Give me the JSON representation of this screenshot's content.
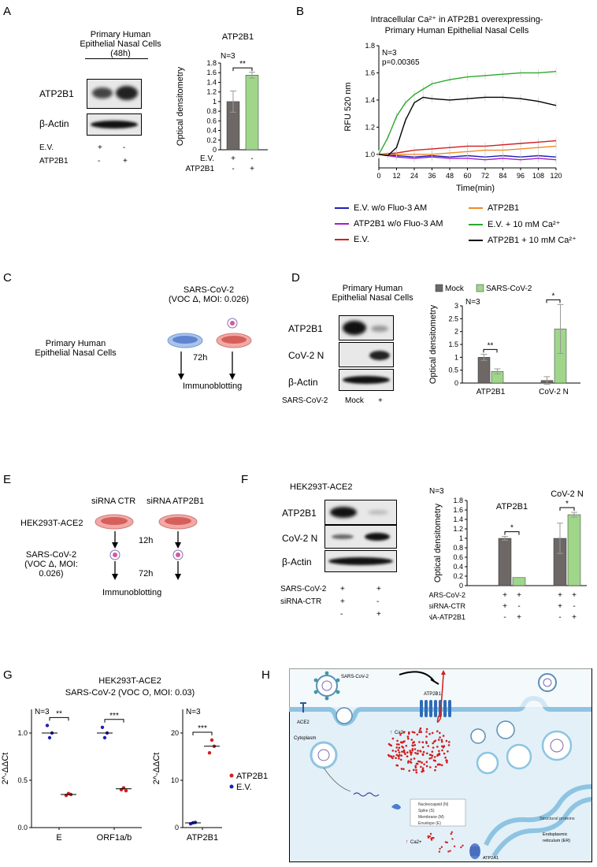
{
  "colors": {
    "gray": "#6d6865",
    "green": "#9fd68a",
    "blue": "#1f1fb4",
    "purple": "#a020c8",
    "red": "#d21e1e",
    "orange": "#f08a28",
    "brightgreen": "#2ca82c",
    "black": "#000000"
  },
  "panelA": {
    "label": "A",
    "header": "Primary Human Epithelial Nasal Cells (48h)",
    "blot_rows": [
      "ATP2B1",
      "β-Actin"
    ],
    "cond_rows": [
      {
        "name": "E.V.",
        "signs": [
          "+",
          "-"
        ]
      },
      {
        "name": "ATP2B1",
        "signs": [
          "-",
          "+"
        ]
      }
    ],
    "chart_data": {
      "type": "bar",
      "title": "ATP2B1",
      "ylabel": "Optical densitometry",
      "ylim": [
        0,
        1.8
      ],
      "yticks": [
        "0",
        "0.2",
        "0.4",
        "0.6",
        "0.8",
        "1",
        "1.2",
        "1.4",
        "1.6",
        "1.8"
      ],
      "values": [
        1.0,
        1.55
      ],
      "errors": [
        0.22,
        0.06
      ],
      "annotation": "N=3",
      "significance": "**",
      "x_rows": [
        {
          "name": "E.V.",
          "signs": [
            "+",
            "-"
          ]
        },
        {
          "name": "ATP2B1",
          "signs": [
            "-",
            "+"
          ]
        }
      ]
    }
  },
  "panelB": {
    "label": "B",
    "chart_data": {
      "type": "line",
      "title_line1": "Intracellular Ca²⁺ in ATP2B1 overexpressing-",
      "title_line2": "Primary Human Epithelial Nasal Cells",
      "xlabel": "Time(min)",
      "ylabel": "RFU 520 nm",
      "xlim": [
        0,
        120
      ],
      "ylim": [
        0.9,
        1.8
      ],
      "xticks": [
        "0",
        "12",
        "24",
        "36",
        "48",
        "60",
        "72",
        "84",
        "96",
        "108",
        "120"
      ],
      "yticks": [
        "1.0",
        "1.2",
        "1.4",
        "1.6",
        "1.8"
      ],
      "annotation_n": "N=3",
      "annotation_p": "p=0.00365",
      "series": [
        {
          "name": "E.V. w/o Fluo-3 AM",
          "x": [
            0,
            12,
            24,
            36,
            48,
            60,
            72,
            84,
            96,
            108,
            120
          ],
          "values": [
            1.0,
            0.99,
            0.98,
            0.99,
            0.98,
            0.99,
            0.98,
            0.99,
            0.98,
            0.99,
            0.98
          ]
        },
        {
          "name": "ATP2B1 w/o Fluo-3 AM",
          "x": [
            0,
            12,
            24,
            36,
            48,
            60,
            72,
            84,
            96,
            108,
            120
          ],
          "values": [
            1.0,
            0.98,
            0.97,
            0.98,
            0.97,
            0.97,
            0.96,
            0.97,
            0.96,
            0.97,
            0.96
          ]
        },
        {
          "name": "E.V.",
          "x": [
            0,
            12,
            24,
            36,
            48,
            60,
            72,
            84,
            96,
            108,
            120
          ],
          "values": [
            1.0,
            1.01,
            1.03,
            1.04,
            1.05,
            1.06,
            1.06,
            1.07,
            1.08,
            1.09,
            1.1
          ]
        },
        {
          "name": "ATP2B1",
          "x": [
            0,
            12,
            24,
            36,
            48,
            60,
            72,
            84,
            96,
            108,
            120
          ],
          "values": [
            1.0,
            1.0,
            1.0,
            1.0,
            1.01,
            1.02,
            1.03,
            1.03,
            1.04,
            1.05,
            1.06
          ]
        },
        {
          "name": "E.V. + 10 mM Ca²⁺",
          "x": [
            0,
            6,
            12,
            18,
            24,
            30,
            36,
            48,
            60,
            72,
            84,
            96,
            108,
            120
          ],
          "values": [
            1.0,
            1.12,
            1.28,
            1.38,
            1.44,
            1.48,
            1.52,
            1.55,
            1.57,
            1.58,
            1.59,
            1.6,
            1.6,
            1.61
          ]
        },
        {
          "name": "ATP2B1 + 10 mM Ca²⁺",
          "x": [
            0,
            6,
            12,
            18,
            24,
            30,
            36,
            48,
            60,
            72,
            84,
            96,
            108,
            120
          ],
          "values": [
            1.0,
            0.99,
            1.05,
            1.25,
            1.38,
            1.42,
            1.41,
            1.4,
            1.41,
            1.42,
            1.42,
            1.41,
            1.39,
            1.36
          ]
        }
      ]
    }
  },
  "panelC": {
    "label": "C",
    "cells": "Primary Human Epithelial Nasal Cells",
    "virus_line1": "SARS-CoV-2",
    "virus_line2": "(VOC Δ, MOI: 0.026)",
    "time": "72h",
    "readout": "Immunoblotting"
  },
  "panelD": {
    "label": "D",
    "header": "Primary Human Epithelial Nasal Cells",
    "blot_rows": [
      "ATP2B1",
      "CoV-2 N",
      "β-Actin"
    ],
    "cond_label": "SARS-CoV-2",
    "cond_values": [
      "Mock",
      "+"
    ],
    "chart_data": {
      "type": "bar",
      "legend": [
        "Mock",
        "SARS-CoV-2"
      ],
      "ylabel": "Optical densitometry",
      "ylim": [
        0,
        3
      ],
      "yticks": [
        "0",
        "0.5",
        "1",
        "1.5",
        "2",
        "2.5",
        "3"
      ],
      "annotation": "N=3",
      "categories": [
        "ATP2B1",
        "CoV-2 N"
      ],
      "series": [
        {
          "name": "Mock",
          "values": [
            1.0,
            0.1
          ],
          "errors": [
            0.12,
            0.15
          ]
        },
        {
          "name": "SARS-CoV-2",
          "values": [
            0.45,
            2.1
          ],
          "errors": [
            0.1,
            0.95
          ]
        }
      ],
      "significance": [
        "**",
        "*"
      ]
    }
  },
  "panelE": {
    "label": "E",
    "sirna1": "siRNA CTR",
    "sirna2": "siRNA ATP2B1",
    "cells": "HEK293T-ACE2",
    "t1": "12h",
    "virus_line1": "SARS-CoV-2",
    "virus_line2": "(VOC Δ, MOI: 0.026)",
    "t2": "72h",
    "readout": "Immunoblotting"
  },
  "panelF": {
    "label": "F",
    "header": "HEK293T-ACE2",
    "blot_rows": [
      "ATP2B1",
      "CoV-2 N",
      "β-Actin"
    ],
    "cond_rows": [
      {
        "name": "SARS-CoV-2",
        "signs": [
          "+",
          "+"
        ]
      },
      {
        "name": "siRNA-CTR",
        "signs": [
          "+",
          "-"
        ]
      },
      {
        "name": "",
        "signs": [
          "-",
          "+"
        ]
      }
    ],
    "chart_data": {
      "type": "bar",
      "ylabel": "Optical densitometry",
      "ylim": [
        0,
        1.8
      ],
      "yticks": [
        "0",
        "0.2",
        "0.4",
        "0.6",
        "0.8",
        "1",
        "1.2",
        "1.4",
        "1.6",
        "1.8"
      ],
      "annotation": "N=3",
      "categories": [
        "ATP2B1",
        "CoV-2 N"
      ],
      "series": [
        {
          "name": "siRNA-CTR",
          "values": [
            1.0,
            1.0
          ],
          "errors": [
            0.04,
            0.32
          ]
        },
        {
          "name": "siRNA-ATP2B1",
          "values": [
            0.17,
            1.5
          ],
          "errors": [
            0.0,
            0.05
          ]
        }
      ],
      "significance": [
        "*",
        "*"
      ],
      "x_rows": [
        {
          "name": "SARS-CoV-2",
          "signs": [
            "+",
            "+",
            "+",
            "+"
          ]
        },
        {
          "name": "siRNA-CTR",
          "signs": [
            "+",
            "-",
            "+",
            "-"
          ]
        },
        {
          "name": "siRNA-ATP2B1",
          "signs": [
            "-",
            "+",
            "-",
            "+"
          ]
        }
      ]
    }
  },
  "panelG": {
    "label": "G",
    "title_line1": "HEK293T-ACE2",
    "title_line2": "SARS-CoV-2 (VOC O, MOI: 0.03)",
    "legend": [
      "ATP2B1",
      "E.V."
    ],
    "chart_data": [
      {
        "type": "scatter",
        "ylabel": "2^-ΔΔCt",
        "ylim": [
          0,
          1.25
        ],
        "yticks": [
          "0.0",
          "0.5",
          "1.0"
        ],
        "categories": [
          "E",
          "ORF1a/b"
        ],
        "annotation": "N=3",
        "significance": [
          "**",
          "***"
        ],
        "series": [
          {
            "name": "E.V.",
            "points": [
              [
                1.08,
                0.95,
                1.0
              ],
              [
                1.06,
                0.95,
                1.0
              ]
            ],
            "mean": [
              1.0,
              1.0
            ]
          },
          {
            "name": "ATP2B1",
            "points": [
              [
                0.34,
                0.36,
                0.35
              ],
              [
                0.4,
                0.42,
                0.39
              ]
            ],
            "mean": [
              0.35,
              0.41
            ]
          }
        ]
      },
      {
        "type": "scatter",
        "ylabel": "2^-ΔΔCt",
        "ylim": [
          0,
          25
        ],
        "yticks": [
          "0",
          "10",
          "20"
        ],
        "categories": [
          "ATP2B1"
        ],
        "annotation": "N=3",
        "significance": [
          "***"
        ],
        "series": [
          {
            "name": "E.V.",
            "points": [
              [
                0.8,
                1.0,
                1.1
              ]
            ],
            "mean": [
              1.0
            ]
          },
          {
            "name": "ATP2B1",
            "points": [
              [
                15.8,
                18.5,
                17.2
              ]
            ],
            "mean": [
              17.2
            ]
          }
        ]
      }
    ]
  },
  "panelH": {
    "label": "H",
    "virus": "SARS-CoV-2",
    "receptor": "ACE2",
    "pump": "ATP2B1",
    "cytoplasm": "Cytoplasm",
    "ca_label": "Ca2+",
    "ca_label2": "Ca2+",
    "proteins": [
      "Nucleocapsid (N)",
      "Spike (S)",
      "Membrane (M)",
      "Envelope (E)"
    ],
    "structural": "Structural proteins",
    "er_line1": "Endoplasmic",
    "er_line2": "reticulum (ER)",
    "serca": "ATP2A1"
  }
}
